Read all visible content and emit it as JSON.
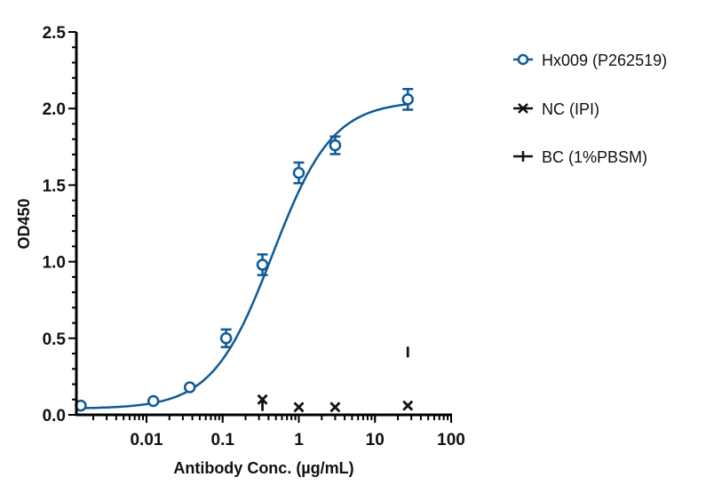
{
  "chart_data": {
    "type": "scatter",
    "title": "",
    "xlabel": "Antibody Conc. (µg/mL)",
    "ylabel": "OD450",
    "xscale": "log",
    "xlim": [
      0.0012,
      100
    ],
    "ylim": [
      0,
      2.5
    ],
    "x_ticks": [
      "0.01",
      "0.1",
      "1",
      "10",
      "100"
    ],
    "x_tick_values": [
      0.01,
      0.1,
      1,
      10,
      100
    ],
    "y_ticks": [
      "0.0",
      "0.5",
      "1.0",
      "1.5",
      "2.0",
      "2.5"
    ],
    "y_tick_values": [
      0,
      0.5,
      1.0,
      1.5,
      2.0,
      2.5
    ],
    "grid": false,
    "legend_position": "right",
    "series": [
      {
        "name": "Hx009 (P262519)",
        "color": "#0f5a96",
        "marker": "open-circle",
        "fit": "4PL sigmoid",
        "x": [
          0.00137,
          0.0123,
          0.037,
          0.111,
          0.333,
          1,
          3,
          27
        ],
        "y": [
          0.06,
          0.09,
          0.18,
          0.5,
          0.98,
          1.58,
          1.76,
          2.06
        ],
        "err": [
          0.0,
          0.0,
          0.0,
          0.04,
          0.05,
          0.05,
          0.04,
          0.05
        ]
      },
      {
        "name": "NC (IPI)",
        "color": "#111111",
        "marker": "x",
        "x": [
          0.333,
          1,
          3,
          27
        ],
        "y": [
          0.1,
          0.05,
          0.05,
          0.06
        ]
      },
      {
        "name": "BC (1%PBSM)",
        "color": "#111111",
        "marker": "vertical-tick",
        "x": [
          0.333,
          27
        ],
        "y": [
          0.06,
          0.41
        ]
      }
    ],
    "fit_params": {
      "bottom": 0.04,
      "top": 2.05,
      "ec50": 0.45,
      "hill": 1.1
    }
  },
  "legend": {
    "items": [
      {
        "label": "Hx009 (P262519)"
      },
      {
        "label": "NC (IPI)"
      },
      {
        "label": "BC (1%PBSM)"
      }
    ]
  }
}
